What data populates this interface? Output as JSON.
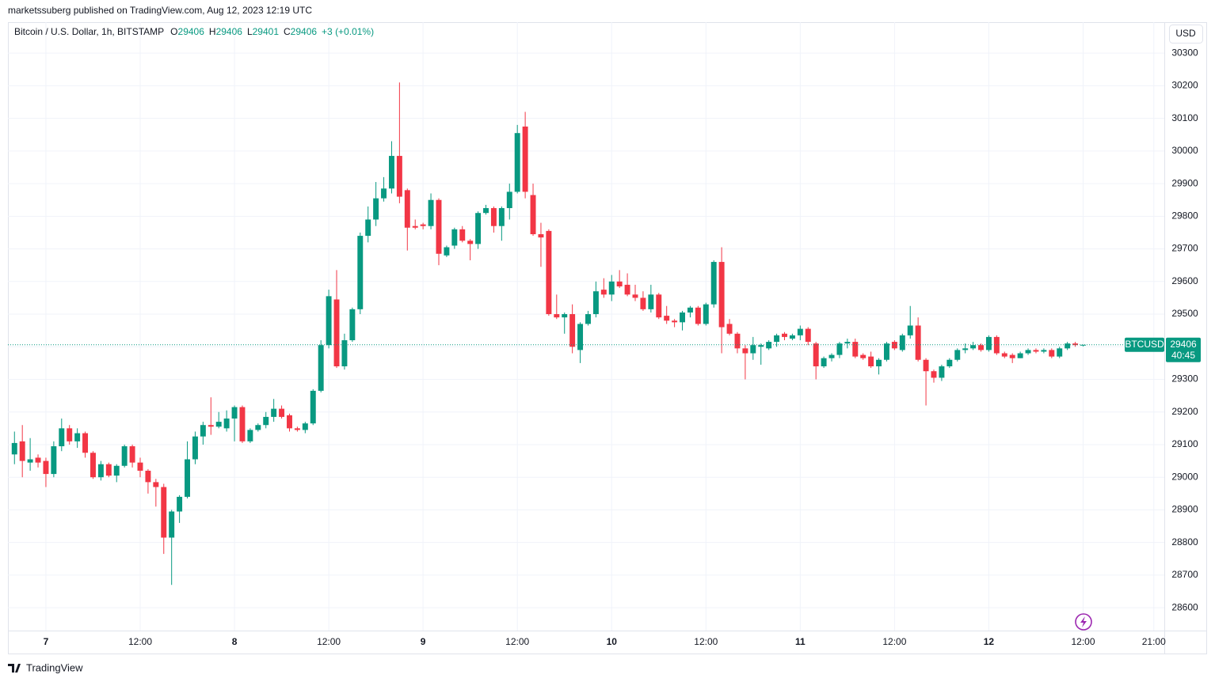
{
  "header": {
    "published": "marketssuberg published on TradingView.com, Aug 12, 2023 12:19 UTC",
    "brand": "TradingView"
  },
  "chart_data": {
    "type": "candlestick",
    "title": "Bitcoin / U.S. Dollar, 1h, BITSTAMP",
    "ohlc_letters": [
      "O",
      "H",
      "L",
      "C"
    ],
    "change": "+3 (+0.01%)",
    "currency": "USD",
    "symbol": "BTCUSD",
    "countdown": "40:45",
    "up_color": "#089981",
    "down_color": "#f23645",
    "grid": true,
    "ylim": [
      28530,
      30395
    ],
    "yticks": [
      28600,
      28700,
      28800,
      28900,
      29000,
      29100,
      29200,
      29300,
      29400,
      29500,
      29600,
      29700,
      29800,
      29900,
      30000,
      30100,
      30200,
      30300
    ],
    "xlim": [
      "6 19:10",
      "12 22:20"
    ],
    "xticks": [
      {
        "value": "7 00:00",
        "label": "7"
      },
      {
        "value": "7 12:00",
        "label": "12:00"
      },
      {
        "value": "8 00:00",
        "label": "8"
      },
      {
        "value": "8 12:00",
        "label": "12:00"
      },
      {
        "value": "9 00:00",
        "label": "9"
      },
      {
        "value": "9 12:00",
        "label": "12:00"
      },
      {
        "value": "10 00:00",
        "label": "10"
      },
      {
        "value": "10 12:00",
        "label": "12:00"
      },
      {
        "value": "11 00:00",
        "label": "11"
      },
      {
        "value": "11 12:00",
        "label": "12:00"
      },
      {
        "value": "12 00:00",
        "label": "12"
      },
      {
        "value": "12 12:00",
        "label": "12:00"
      },
      {
        "value": "12 21:00",
        "label": "21:00"
      }
    ],
    "x": [
      "6 20:00",
      "6 21:00",
      "6 22:00",
      "6 23:00",
      "7 00:00",
      "7 01:00",
      "7 02:00",
      "7 03:00",
      "7 04:00",
      "7 05:00",
      "7 06:00",
      "7 07:00",
      "7 08:00",
      "7 09:00",
      "7 10:00",
      "7 11:00",
      "7 12:00",
      "7 13:00",
      "7 14:00",
      "7 15:00",
      "7 16:00",
      "7 17:00",
      "7 18:00",
      "7 19:00",
      "7 20:00",
      "7 21:00",
      "7 22:00",
      "7 23:00",
      "8 00:00",
      "8 01:00",
      "8 02:00",
      "8 03:00",
      "8 04:00",
      "8 05:00",
      "8 06:00",
      "8 07:00",
      "8 08:00",
      "8 09:00",
      "8 10:00",
      "8 11:00",
      "8 12:00",
      "8 13:00",
      "8 14:00",
      "8 15:00",
      "8 16:00",
      "8 17:00",
      "8 18:00",
      "8 19:00",
      "8 20:00",
      "8 21:00",
      "8 22:00",
      "8 23:00",
      "9 00:00",
      "9 01:00",
      "9 02:00",
      "9 03:00",
      "9 04:00",
      "9 05:00",
      "9 06:00",
      "9 07:00",
      "9 08:00",
      "9 09:00",
      "9 10:00",
      "9 11:00",
      "9 12:00",
      "9 13:00",
      "9 14:00",
      "9 15:00",
      "9 16:00",
      "9 17:00",
      "9 18:00",
      "9 19:00",
      "9 20:00",
      "9 21:00",
      "9 22:00",
      "9 23:00",
      "10 00:00",
      "10 01:00",
      "10 02:00",
      "10 03:00",
      "10 04:00",
      "10 05:00",
      "10 06:00",
      "10 07:00",
      "10 08:00",
      "10 09:00",
      "10 10:00",
      "10 11:00",
      "10 12:00",
      "10 13:00",
      "10 14:00",
      "10 15:00",
      "10 16:00",
      "10 17:00",
      "10 18:00",
      "10 19:00",
      "10 20:00",
      "10 21:00",
      "10 22:00",
      "10 23:00",
      "11 00:00",
      "11 01:00",
      "11 02:00",
      "11 03:00",
      "11 04:00",
      "11 05:00",
      "11 06:00",
      "11 07:00",
      "11 08:00",
      "11 09:00",
      "11 10:00",
      "11 11:00",
      "11 12:00",
      "11 13:00",
      "11 14:00",
      "11 15:00",
      "11 16:00",
      "11 17:00",
      "11 18:00",
      "11 19:00",
      "11 20:00",
      "11 21:00",
      "11 22:00",
      "11 23:00",
      "12 00:00",
      "12 01:00",
      "12 02:00",
      "12 03:00",
      "12 04:00",
      "12 05:00",
      "12 06:00",
      "12 07:00",
      "12 08:00",
      "12 09:00",
      "12 10:00",
      "12 11:00",
      "12 12:00"
    ],
    "open": [
      29070,
      29110,
      29045,
      29060,
      29050,
      29010,
      29095,
      29150,
      29110,
      29135,
      29075,
      29000,
      29040,
      29005,
      29035,
      29095,
      29045,
      29020,
      28985,
      28970,
      28815,
      28895,
      28940,
      29055,
      29125,
      29160,
      29155,
      29150,
      29180,
      29215,
      29110,
      29145,
      29160,
      29185,
      29210,
      29190,
      29150,
      29145,
      29165,
      29265,
      29405,
      29545,
      29340,
      29420,
      29515,
      29740,
      29790,
      29855,
      29885,
      29985,
      29880,
      29770,
      29775,
      29770,
      29850,
      29680,
      29710,
      29760,
      29725,
      29715,
      29810,
      29825,
      29770,
      29825,
      29875,
      30075,
      29865,
      29745,
      29755,
      29500,
      29490,
      29500,
      29390,
      29470,
      29500,
      29575,
      29560,
      29600,
      29590,
      29560,
      29550,
      29515,
      29560,
      29495,
      29480,
      29475,
      29505,
      29520,
      29470,
      29530,
      29660,
      29470,
      29440,
      29395,
      29380,
      29400,
      29395,
      29415,
      29440,
      29425,
      29435,
      29455,
      29410,
      29340,
      29365,
      29375,
      29410,
      29415,
      29375,
      29370,
      29340,
      29360,
      29415,
      29390,
      29435,
      29465,
      29360,
      29325,
      29305,
      29340,
      29360,
      29390,
      29395,
      29405,
      29390,
      29430,
      29380,
      29375,
      29365,
      29380,
      29390,
      29385,
      29390,
      29370,
      29395,
      29410,
      29406
    ],
    "high": [
      29140,
      29160,
      29120,
      29070,
      29060,
      29110,
      29180,
      29160,
      29150,
      29140,
      29080,
      29050,
      29045,
      29040,
      29100,
      29100,
      29060,
      29025,
      28995,
      28980,
      28900,
      28945,
      29110,
      29140,
      29170,
      29245,
      29200,
      29205,
      29220,
      29220,
      29150,
      29165,
      29200,
      29240,
      29220,
      29195,
      29155,
      29170,
      29270,
      29420,
      29575,
      29635,
      29440,
      29520,
      29750,
      29830,
      29905,
      29920,
      30030,
      30210,
      29885,
      29790,
      29780,
      29870,
      29855,
      29710,
      29765,
      29770,
      29730,
      29815,
      29835,
      29830,
      29830,
      29900,
      30080,
      30120,
      29900,
      29780,
      29760,
      29560,
      29505,
      29530,
      29475,
      29510,
      29600,
      29610,
      29620,
      29635,
      29625,
      29590,
      29570,
      29590,
      29565,
      29525,
      29485,
      29510,
      29525,
      29525,
      29535,
      29665,
      29705,
      29485,
      29445,
      29405,
      29430,
      29410,
      29420,
      29440,
      29445,
      29440,
      29465,
      29460,
      29415,
      29370,
      29380,
      29415,
      29425,
      29425,
      29380,
      29385,
      29365,
      29415,
      29420,
      29440,
      29525,
      29490,
      29365,
      29330,
      29345,
      29365,
      29395,
      29410,
      29415,
      29410,
      29435,
      29435,
      29385,
      29380,
      29385,
      29395,
      29395,
      29395,
      29395,
      29400,
      29415,
      29415,
      29406
    ],
    "low": [
      29040,
      29000,
      29020,
      29030,
      28970,
      29000,
      29080,
      29100,
      29090,
      29060,
      28995,
      28990,
      29000,
      28985,
      29030,
      29030,
      29000,
      28950,
      28910,
      28765,
      28670,
      28860,
      28935,
      29040,
      29100,
      29130,
      29150,
      29140,
      29110,
      29105,
      29105,
      29140,
      29150,
      29170,
      29180,
      29140,
      29140,
      29135,
      29160,
      29260,
      29395,
      29335,
      29330,
      29415,
      29500,
      29720,
      29770,
      29845,
      29870,
      29840,
      29695,
      29760,
      29760,
      29760,
      29650,
      29675,
      29700,
      29720,
      29665,
      29700,
      29805,
      29750,
      29725,
      29790,
      29870,
      29855,
      29740,
      29645,
      29495,
      29485,
      29440,
      29380,
      29350,
      29465,
      29490,
      29550,
      29540,
      29580,
      29555,
      29540,
      29510,
      29505,
      29485,
      29470,
      29460,
      29450,
      29490,
      29465,
      29465,
      29520,
      29380,
      29435,
      29380,
      29300,
      29360,
      29345,
      29390,
      29400,
      29420,
      29420,
      29420,
      29405,
      29300,
      29335,
      29355,
      29365,
      29395,
      29365,
      29360,
      29335,
      29315,
      29355,
      29390,
      29385,
      29425,
      29355,
      29220,
      29290,
      29295,
      29335,
      29355,
      29380,
      29390,
      29385,
      29385,
      29375,
      29365,
      29350,
      29365,
      29375,
      29380,
      29380,
      29365,
      29365,
      29390,
      29400,
      29401
    ],
    "close": [
      29105,
      29050,
      29055,
      29045,
      29010,
      29095,
      29150,
      29110,
      29135,
      29075,
      29000,
      29040,
      29005,
      29035,
      29095,
      29045,
      29020,
      28985,
      28970,
      28815,
      28895,
      28940,
      29055,
      29125,
      29160,
      29155,
      29170,
      29180,
      29215,
      29110,
      29145,
      29160,
      29185,
      29210,
      29185,
      29150,
      29145,
      29165,
      29265,
      29405,
      29555,
      29340,
      29420,
      29515,
      29740,
      29790,
      29855,
      29885,
      29985,
      29860,
      29765,
      29765,
      29770,
      29850,
      29685,
      29705,
      29760,
      29725,
      29715,
      29810,
      29825,
      29770,
      29825,
      29875,
      30055,
      29875,
      29745,
      29735,
      29500,
      29490,
      29500,
      29400,
      29470,
      29500,
      29570,
      29560,
      29600,
      29585,
      29560,
      29550,
      29515,
      29560,
      29490,
      29480,
      29475,
      29505,
      29520,
      29470,
      29530,
      29660,
      29460,
      29440,
      29395,
      29380,
      29405,
      29405,
      29415,
      29435,
      29430,
      29435,
      29455,
      29415,
      29340,
      29365,
      29375,
      29410,
      29415,
      29370,
      29365,
      29340,
      29360,
      29410,
      29395,
      29435,
      29465,
      29360,
      29325,
      29305,
      29340,
      29360,
      29390,
      29395,
      29405,
      29390,
      29430,
      29380,
      29370,
      29365,
      29380,
      29390,
      29385,
      29390,
      29370,
      29395,
      29410,
      29405,
      29406
    ]
  }
}
